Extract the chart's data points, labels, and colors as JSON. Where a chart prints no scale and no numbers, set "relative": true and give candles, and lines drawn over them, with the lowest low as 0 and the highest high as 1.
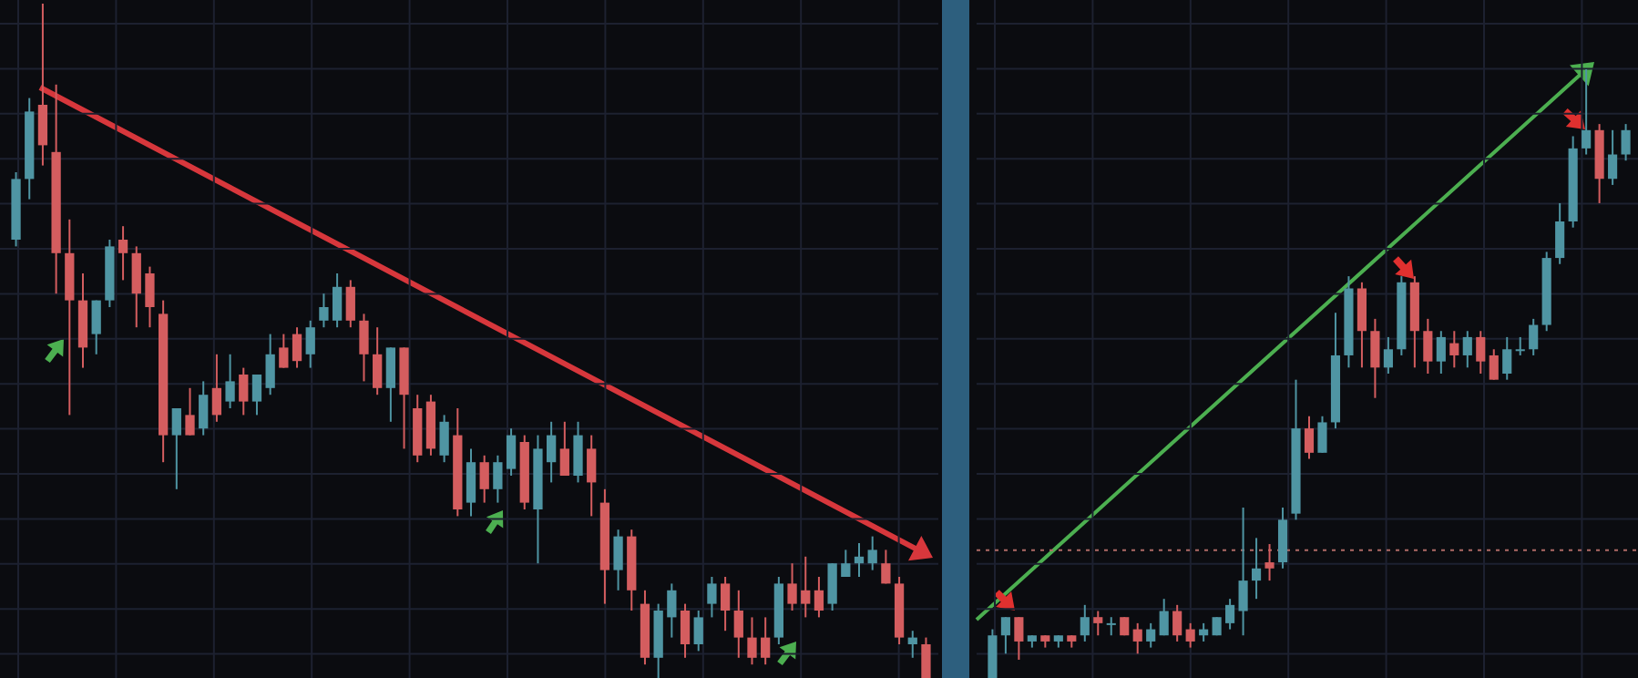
{
  "chart_data": [
    {
      "type": "candlestick",
      "relative": true,
      "grid": true,
      "categories": [
        null,
        null,
        null,
        null,
        null,
        null,
        null,
        null,
        null,
        null,
        null,
        null,
        null,
        null,
        null,
        null,
        null,
        null,
        null,
        null,
        null,
        null,
        null,
        null,
        null,
        null,
        null,
        null,
        null,
        null,
        null,
        null,
        null,
        null,
        null,
        null,
        null,
        null,
        null,
        null,
        null,
        null,
        null,
        null,
        null,
        null,
        null,
        null,
        null,
        null,
        null,
        null,
        null,
        null,
        null,
        null,
        null,
        null,
        null,
        null,
        null,
        null,
        null,
        null,
        null,
        null,
        null,
        null,
        null
      ],
      "ohlc": [
        [
          0.65,
          0.75,
          0.64,
          0.74
        ],
        [
          0.74,
          0.86,
          0.71,
          0.84
        ],
        [
          0.85,
          1.0,
          0.76,
          0.79
        ],
        [
          0.78,
          0.88,
          0.57,
          0.63
        ],
        [
          0.63,
          0.68,
          0.39,
          0.56
        ],
        [
          0.56,
          0.6,
          0.46,
          0.49
        ],
        [
          0.51,
          0.56,
          0.48,
          0.56
        ],
        [
          0.56,
          0.65,
          0.55,
          0.64
        ],
        [
          0.65,
          0.67,
          0.59,
          0.63
        ],
        [
          0.63,
          0.64,
          0.52,
          0.57
        ],
        [
          0.6,
          0.61,
          0.52,
          0.55
        ],
        [
          0.54,
          0.56,
          0.32,
          0.36
        ],
        [
          0.36,
          0.4,
          0.28,
          0.4
        ],
        [
          0.39,
          0.43,
          0.36,
          0.36
        ],
        [
          0.37,
          0.44,
          0.36,
          0.42
        ],
        [
          0.43,
          0.48,
          0.38,
          0.39
        ],
        [
          0.41,
          0.48,
          0.4,
          0.44
        ],
        [
          0.45,
          0.46,
          0.39,
          0.41
        ],
        [
          0.41,
          0.45,
          0.39,
          0.45
        ],
        [
          0.43,
          0.51,
          0.42,
          0.48
        ],
        [
          0.49,
          0.51,
          0.46,
          0.46
        ],
        [
          0.51,
          0.52,
          0.46,
          0.47
        ],
        [
          0.48,
          0.53,
          0.46,
          0.52
        ],
        [
          0.53,
          0.57,
          0.52,
          0.55
        ],
        [
          0.53,
          0.6,
          0.52,
          0.58
        ],
        [
          0.58,
          0.59,
          0.52,
          0.53
        ],
        [
          0.53,
          0.54,
          0.44,
          0.48
        ],
        [
          0.48,
          0.52,
          0.42,
          0.43
        ],
        [
          0.43,
          0.49,
          0.38,
          0.49
        ],
        [
          0.49,
          0.49,
          0.34,
          0.42
        ],
        [
          0.4,
          0.42,
          0.32,
          0.33
        ],
        [
          0.41,
          0.42,
          0.33,
          0.34
        ],
        [
          0.33,
          0.39,
          0.32,
          0.38
        ],
        [
          0.36,
          0.4,
          0.24,
          0.25
        ],
        [
          0.26,
          0.34,
          0.24,
          0.32
        ],
        [
          0.32,
          0.33,
          0.26,
          0.28
        ],
        [
          0.28,
          0.33,
          0.26,
          0.32
        ],
        [
          0.31,
          0.37,
          0.3,
          0.36
        ],
        [
          0.35,
          0.36,
          0.25,
          0.26
        ],
        [
          0.25,
          0.36,
          0.17,
          0.34
        ],
        [
          0.32,
          0.38,
          0.29,
          0.36
        ],
        [
          0.34,
          0.38,
          0.3,
          0.3
        ],
        [
          0.3,
          0.38,
          0.29,
          0.36
        ],
        [
          0.34,
          0.36,
          0.24,
          0.29
        ],
        [
          0.26,
          0.28,
          0.11,
          0.16
        ],
        [
          0.16,
          0.22,
          0.13,
          0.21
        ],
        [
          0.21,
          0.22,
          0.1,
          0.13
        ],
        [
          0.11,
          0.13,
          0.02,
          0.03
        ],
        [
          0.03,
          0.11,
          0.0,
          0.1
        ],
        [
          0.09,
          0.14,
          0.06,
          0.13
        ],
        [
          0.1,
          0.11,
          0.03,
          0.05
        ],
        [
          0.05,
          0.1,
          0.04,
          0.09
        ],
        [
          0.11,
          0.15,
          0.09,
          0.14
        ],
        [
          0.14,
          0.15,
          0.07,
          0.1
        ],
        [
          0.1,
          0.13,
          0.03,
          0.06
        ],
        [
          0.06,
          0.09,
          0.02,
          0.03
        ],
        [
          0.06,
          0.09,
          0.02,
          0.03
        ],
        [
          0.06,
          0.15,
          0.05,
          0.14
        ],
        [
          0.14,
          0.17,
          0.1,
          0.11
        ],
        [
          0.13,
          0.18,
          0.09,
          0.11
        ],
        [
          0.13,
          0.15,
          0.09,
          0.1
        ],
        [
          0.11,
          0.17,
          0.1,
          0.17
        ],
        [
          0.15,
          0.19,
          0.15,
          0.17
        ],
        [
          0.17,
          0.2,
          0.15,
          0.18
        ],
        [
          0.17,
          0.21,
          0.16,
          0.19
        ],
        [
          0.17,
          0.19,
          0.14,
          0.14
        ],
        [
          0.14,
          0.15,
          0.05,
          0.06
        ],
        [
          0.05,
          0.07,
          0.03,
          0.06
        ],
        [
          0.05,
          0.06,
          0.0,
          0.0
        ]
      ]
    },
    {
      "type": "candlestick",
      "relative": true,
      "grid": true,
      "categories": [
        null,
        null,
        null,
        null,
        null,
        null,
        null,
        null,
        null,
        null,
        null,
        null,
        null,
        null,
        null,
        null,
        null,
        null,
        null,
        null,
        null,
        null,
        null,
        null,
        null,
        null,
        null,
        null,
        null,
        null,
        null,
        null,
        null,
        null,
        null,
        null,
        null,
        null,
        null,
        null,
        null,
        null,
        null,
        null,
        null,
        null,
        null,
        null,
        null
      ],
      "ref_lines": [
        {
          "axis": "y",
          "value": 0.21,
          "color": "#b06a66",
          "line_style": "dotted"
        }
      ],
      "ohlc": [
        [
          0,
          0.08,
          0,
          0.07
        ],
        [
          0.07,
          0.1,
          0.04,
          0.1
        ],
        [
          0.1,
          0.1,
          0.03,
          0.06
        ],
        [
          0.06,
          0.07,
          0.05,
          0.07
        ],
        [
          0.07,
          0.07,
          0.05,
          0.06
        ],
        [
          0.06,
          0.07,
          0.05,
          0.07
        ],
        [
          0.07,
          0.07,
          0.05,
          0.06
        ],
        [
          0.07,
          0.12,
          0.06,
          0.1
        ],
        [
          0.1,
          0.11,
          0.07,
          0.09
        ],
        [
          0.09,
          0.1,
          0.07,
          0.09
        ],
        [
          0.1,
          0.1,
          0.07,
          0.07
        ],
        [
          0.08,
          0.09,
          0.04,
          0.06
        ],
        [
          0.06,
          0.09,
          0.05,
          0.08
        ],
        [
          0.07,
          0.13,
          0.07,
          0.11
        ],
        [
          0.11,
          0.12,
          0.06,
          0.07
        ],
        [
          0.08,
          0.09,
          0.05,
          0.06
        ],
        [
          0.07,
          0.09,
          0.06,
          0.08
        ],
        [
          0.07,
          0.1,
          0.07,
          0.1
        ],
        [
          0.09,
          0.13,
          0.08,
          0.12
        ],
        [
          0.11,
          0.28,
          0.07,
          0.16
        ],
        [
          0.16,
          0.23,
          0.13,
          0.18
        ],
        [
          0.19,
          0.22,
          0.16,
          0.18
        ],
        [
          0.19,
          0.28,
          0.18,
          0.26
        ],
        [
          0.27,
          0.49,
          0.26,
          0.41
        ],
        [
          0.41,
          0.43,
          0.36,
          0.37
        ],
        [
          0.37,
          0.43,
          0.37,
          0.42
        ],
        [
          0.42,
          0.6,
          0.41,
          0.53
        ],
        [
          0.53,
          0.66,
          0.51,
          0.64
        ],
        [
          0.64,
          0.65,
          0.51,
          0.57
        ],
        [
          0.57,
          0.59,
          0.46,
          0.51
        ],
        [
          0.51,
          0.56,
          0.5,
          0.54
        ],
        [
          0.54,
          0.66,
          0.53,
          0.65
        ],
        [
          0.65,
          0.66,
          0.51,
          0.57
        ],
        [
          0.57,
          0.59,
          0.5,
          0.52
        ],
        [
          0.52,
          0.57,
          0.5,
          0.56
        ],
        [
          0.55,
          0.57,
          0.51,
          0.53
        ],
        [
          0.53,
          0.57,
          0.51,
          0.56
        ],
        [
          0.56,
          0.57,
          0.5,
          0.52
        ],
        [
          0.53,
          0.54,
          0.49,
          0.49
        ],
        [
          0.5,
          0.56,
          0.49,
          0.54
        ],
        [
          0.54,
          0.56,
          0.53,
          0.54
        ],
        [
          0.54,
          0.59,
          0.53,
          0.58
        ],
        [
          0.58,
          0.7,
          0.57,
          0.69
        ],
        [
          0.69,
          0.78,
          0.68,
          0.75
        ],
        [
          0.75,
          0.89,
          0.74,
          0.87
        ],
        [
          0.87,
          1.0,
          0.86,
          0.9
        ],
        [
          0.9,
          0.91,
          0.78,
          0.82
        ],
        [
          0.82,
          0.9,
          0.81,
          0.86
        ],
        [
          0.86,
          0.91,
          0.85,
          0.9
        ]
      ]
    }
  ]
}
